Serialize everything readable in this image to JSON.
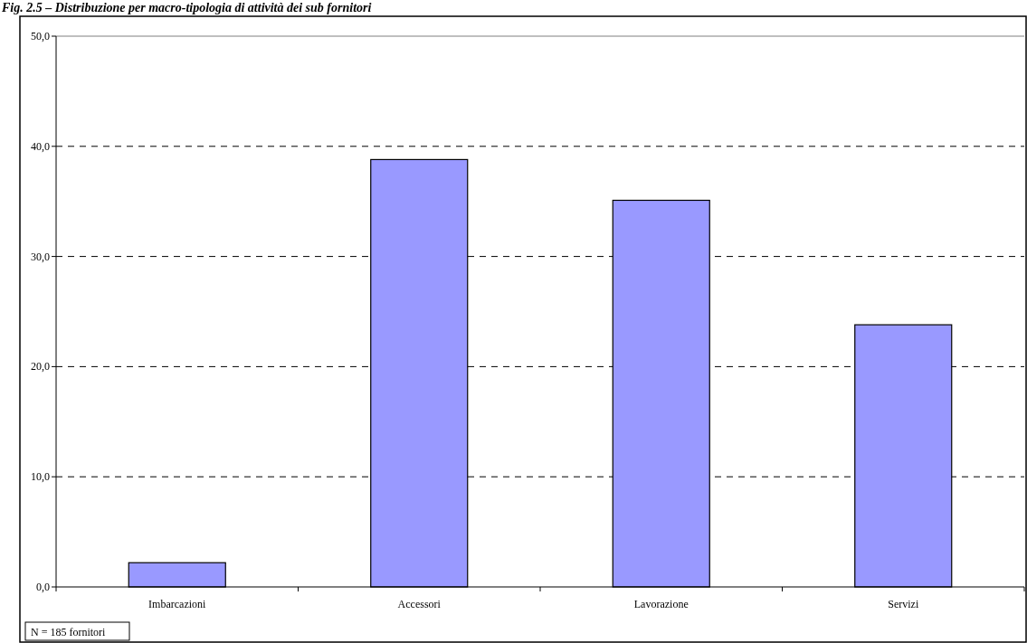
{
  "chart_data": {
    "type": "bar",
    "title": "Fig. 2.5 – Distribuzione per macro-tipologia di attività dei sub fornitori",
    "categories": [
      "Imbarcazioni",
      "Accessori",
      "Lavorazione",
      "Servizi"
    ],
    "values": [
      2.2,
      38.8,
      35.1,
      23.8
    ],
    "color": "#9999ff",
    "ylim": [
      0,
      50
    ],
    "yticks": [
      {
        "value": 0,
        "label": "0,0"
      },
      {
        "value": 10,
        "label": "10,0"
      },
      {
        "value": 20,
        "label": "20,0"
      },
      {
        "value": 30,
        "label": "30,0"
      },
      {
        "value": 40,
        "label": "40,0"
      },
      {
        "value": 50,
        "label": "50,0"
      }
    ],
    "grid": "y",
    "annotations": [
      "N = 185 fornitori"
    ]
  }
}
